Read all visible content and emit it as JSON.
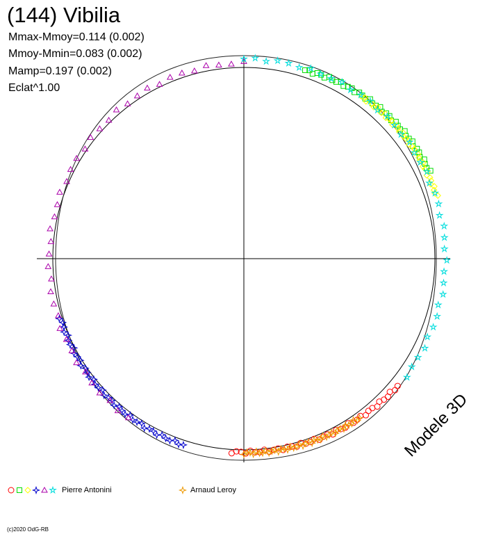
{
  "title": "(144) Vibilia",
  "stats": [
    "Mmax-Mmoy=0.114 (0.002)",
    "Mmoy-Mmin=0.083 (0.002)",
    "Mamp=0.197 (0.002)",
    "Eclat^1.00"
  ],
  "model_label": "Modele 3D",
  "legend": [
    {
      "label": "Pierre Antonini",
      "markers": [
        "circle",
        "square",
        "diamond",
        "star4",
        "triangle",
        "star5"
      ],
      "colors": [
        "#ff0000",
        "#00dd00",
        "#ffff00",
        "#0000cc",
        "#aa00aa",
        "#00dddd"
      ]
    },
    {
      "label": "Arnaud Leroy",
      "markers": [
        "star4"
      ],
      "colors": [
        "#ee9900"
      ]
    }
  ],
  "copyright": "(c)2020 OdG-RB",
  "chart_data": {
    "type": "scatter",
    "projection": "polar",
    "description_note": "",
    "amplitude": 0.197,
    "rotation_phase_range": [
      0,
      1
    ],
    "model_curve_deviation_max": 0.114,
    "model_curve_deviation_min": -0.083,
    "series": [
      {
        "name": "Pierre Antonini",
        "color": "#ff0000",
        "marker": "circle",
        "phase_range": [
          0.36,
          0.51
        ],
        "values_sample": [
          0.02,
          -0.01,
          -0.03,
          -0.05,
          -0.06,
          -0.06
        ]
      },
      {
        "name": "Pierre Antonini",
        "color": "#00dd00",
        "marker": "square",
        "phase_range": [
          0.05,
          0.18
        ],
        "values_sample": [
          0.0,
          0.03,
          0.06,
          0.08,
          0.09
        ]
      },
      {
        "name": "Pierre Antonini",
        "color": "#ffff00",
        "marker": "diamond",
        "phase_range": [
          0.1,
          0.2
        ],
        "values_sample": [
          0.03,
          0.05,
          0.06
        ]
      },
      {
        "name": "Pierre Antonini",
        "color": "#0000cc",
        "marker": "star4",
        "phase_range": [
          0.55,
          0.7
        ],
        "values_sample": [
          -0.03,
          -0.05,
          -0.07
        ]
      },
      {
        "name": "Pierre Antonini",
        "color": "#aa00aa",
        "marker": "triangle",
        "phase_range": [
          0.6,
          1.0
        ],
        "values_sample": [
          -0.02,
          -0.04,
          -0.05,
          -0.03
        ]
      },
      {
        "name": "Pierre Antonini",
        "color": "#00dddd",
        "marker": "star5",
        "phase_range": [
          0.0,
          0.35
        ],
        "values_sample": [
          0.02,
          0.04,
          0.05,
          0.03
        ]
      },
      {
        "name": "Arnaud Leroy",
        "color": "#ee9900",
        "marker": "star4",
        "phase_range": [
          0.4,
          0.5
        ],
        "values_sample": [
          -0.02,
          -0.04,
          -0.05
        ]
      }
    ],
    "grid": false,
    "legend_position": "bottom-left"
  }
}
